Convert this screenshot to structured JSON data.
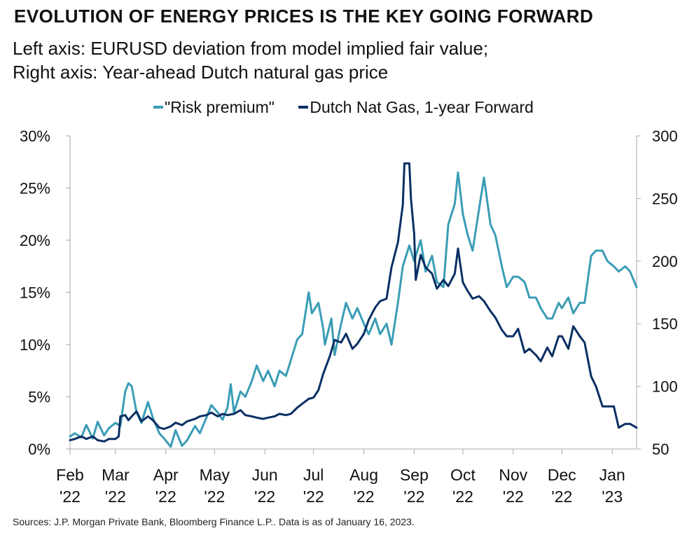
{
  "title": "EVOLUTION OF ENERGY PRICES IS THE KEY GOING FORWARD",
  "subtitle_line1": "Left axis: EURUSD deviation from model implied fair value;",
  "subtitle_line2": "Right axis: Year-ahead Dutch natural gas price",
  "source": "Sources: J.P. Morgan Private Bank, Bloomberg Finance L.P.. Data is as of January 16, 2023.",
  "colors": {
    "risk_premium": "#3a9db5",
    "nat_gas": "#0a2f63",
    "axis": "#aaaaaa"
  },
  "chart_data": {
    "type": "line",
    "legend_position": "top-center",
    "grid": false,
    "x_range": [
      "2022-02-01",
      "2023-01-16"
    ],
    "y_left": {
      "range": [
        0,
        30
      ],
      "ticks": [
        "0%",
        "5%",
        "10%",
        "15%",
        "20%",
        "25%",
        "30%"
      ],
      "tick_values": [
        0,
        5,
        10,
        15,
        20,
        25,
        30
      ]
    },
    "y_right": {
      "range": [
        50,
        300
      ],
      "ticks": [
        "50",
        "100",
        "150",
        "200",
        "250",
        "300"
      ],
      "tick_values": [
        50,
        100,
        150,
        200,
        250,
        300
      ]
    },
    "x_ticks": [
      {
        "date": "2022-02-01",
        "line1": "Feb",
        "line2": "'22"
      },
      {
        "date": "2022-03-01",
        "line1": "Mar",
        "line2": "'22"
      },
      {
        "date": "2022-04-01",
        "line1": "Apr",
        "line2": "'22"
      },
      {
        "date": "2022-05-01",
        "line1": "May",
        "line2": "'22"
      },
      {
        "date": "2022-06-01",
        "line1": "Jun",
        "line2": "'22"
      },
      {
        "date": "2022-07-01",
        "line1": "Jul",
        "line2": "'22"
      },
      {
        "date": "2022-08-01",
        "line1": "Aug",
        "line2": "'22"
      },
      {
        "date": "2022-09-01",
        "line1": "Sep",
        "line2": "'22"
      },
      {
        "date": "2022-10-01",
        "line1": "Oct",
        "line2": "'22"
      },
      {
        "date": "2022-11-01",
        "line1": "Nov",
        "line2": "'22"
      },
      {
        "date": "2022-12-01",
        "line1": "Dec",
        "line2": "'22"
      },
      {
        "date": "2023-01-01",
        "line1": "Jan",
        "line2": "'23"
      }
    ],
    "series": [
      {
        "name": "\"Risk premium\"",
        "axis": "left",
        "color": "#3a9db5",
        "points": [
          [
            "2022-02-01",
            1.2
          ],
          [
            "2022-02-04",
            1.5
          ],
          [
            "2022-02-08",
            1.1
          ],
          [
            "2022-02-11",
            2.3
          ],
          [
            "2022-02-15",
            1.0
          ],
          [
            "2022-02-18",
            2.6
          ],
          [
            "2022-02-22",
            1.3
          ],
          [
            "2022-02-25",
            2.0
          ],
          [
            "2022-03-01",
            2.5
          ],
          [
            "2022-03-04",
            2.2
          ],
          [
            "2022-03-07",
            5.5
          ],
          [
            "2022-03-09",
            6.3
          ],
          [
            "2022-03-11",
            6.0
          ],
          [
            "2022-03-14",
            3.5
          ],
          [
            "2022-03-17",
            2.5
          ],
          [
            "2022-03-21",
            4.5
          ],
          [
            "2022-03-24",
            3.0
          ],
          [
            "2022-03-28",
            1.5
          ],
          [
            "2022-03-31",
            1.0
          ],
          [
            "2022-04-04",
            0.2
          ],
          [
            "2022-04-07",
            1.8
          ],
          [
            "2022-04-11",
            0.3
          ],
          [
            "2022-04-14",
            0.8
          ],
          [
            "2022-04-19",
            2.2
          ],
          [
            "2022-04-22",
            1.5
          ],
          [
            "2022-04-26",
            3.0
          ],
          [
            "2022-04-29",
            4.2
          ],
          [
            "2022-05-03",
            3.5
          ],
          [
            "2022-05-06",
            2.8
          ],
          [
            "2022-05-09",
            4.0
          ],
          [
            "2022-05-11",
            6.2
          ],
          [
            "2022-05-13",
            3.5
          ],
          [
            "2022-05-17",
            5.5
          ],
          [
            "2022-05-20",
            5.0
          ],
          [
            "2022-05-24",
            6.5
          ],
          [
            "2022-05-27",
            8.0
          ],
          [
            "2022-05-31",
            6.5
          ],
          [
            "2022-06-03",
            7.5
          ],
          [
            "2022-06-07",
            6.0
          ],
          [
            "2022-06-10",
            7.5
          ],
          [
            "2022-06-14",
            7.0
          ],
          [
            "2022-06-17",
            8.5
          ],
          [
            "2022-06-21",
            10.5
          ],
          [
            "2022-06-24",
            11.0
          ],
          [
            "2022-06-28",
            15.0
          ],
          [
            "2022-06-30",
            13.0
          ],
          [
            "2022-07-04",
            14.0
          ],
          [
            "2022-07-07",
            11.5
          ],
          [
            "2022-07-08",
            10.0
          ],
          [
            "2022-07-12",
            12.5
          ],
          [
            "2022-07-14",
            9.0
          ],
          [
            "2022-07-18",
            12.0
          ],
          [
            "2022-07-21",
            14.0
          ],
          [
            "2022-07-25",
            12.5
          ],
          [
            "2022-07-28",
            13.5
          ],
          [
            "2022-08-01",
            12.0
          ],
          [
            "2022-08-04",
            11.0
          ],
          [
            "2022-08-08",
            12.5
          ],
          [
            "2022-08-11",
            11.0
          ],
          [
            "2022-08-15",
            12.0
          ],
          [
            "2022-08-18",
            10.0
          ],
          [
            "2022-08-22",
            14.0
          ],
          [
            "2022-08-25",
            17.5
          ],
          [
            "2022-08-29",
            19.5
          ],
          [
            "2022-09-01",
            18.0
          ],
          [
            "2022-09-05",
            20.0
          ],
          [
            "2022-09-08",
            17.0
          ],
          [
            "2022-09-12",
            18.5
          ],
          [
            "2022-09-15",
            16.0
          ],
          [
            "2022-09-19",
            15.5
          ],
          [
            "2022-09-22",
            21.5
          ],
          [
            "2022-09-26",
            23.5
          ],
          [
            "2022-09-28",
            26.5
          ],
          [
            "2022-10-01",
            22.5
          ],
          [
            "2022-10-04",
            20.5
          ],
          [
            "2022-10-07",
            19.0
          ],
          [
            "2022-10-11",
            23.0
          ],
          [
            "2022-10-14",
            26.0
          ],
          [
            "2022-10-18",
            21.5
          ],
          [
            "2022-10-21",
            20.5
          ],
          [
            "2022-10-25",
            17.5
          ],
          [
            "2022-10-28",
            15.5
          ],
          [
            "2022-11-01",
            16.5
          ],
          [
            "2022-11-04",
            16.5
          ],
          [
            "2022-11-08",
            16.0
          ],
          [
            "2022-11-11",
            14.5
          ],
          [
            "2022-11-15",
            14.5
          ],
          [
            "2022-11-18",
            13.5
          ],
          [
            "2022-11-22",
            12.5
          ],
          [
            "2022-11-25",
            12.5
          ],
          [
            "2022-11-29",
            14.0
          ],
          [
            "2022-12-01",
            13.5
          ],
          [
            "2022-12-05",
            14.5
          ],
          [
            "2022-12-08",
            13.0
          ],
          [
            "2022-12-12",
            14.0
          ],
          [
            "2022-12-15",
            14.0
          ],
          [
            "2022-12-19",
            18.5
          ],
          [
            "2022-12-22",
            19.0
          ],
          [
            "2022-12-26",
            19.0
          ],
          [
            "2022-12-29",
            18.0
          ],
          [
            "2023-01-02",
            17.5
          ],
          [
            "2023-01-05",
            17.0
          ],
          [
            "2023-01-09",
            17.5
          ],
          [
            "2023-01-12",
            17.0
          ],
          [
            "2023-01-16",
            15.5
          ]
        ]
      },
      {
        "name": "Dutch Nat Gas, 1-year Forward",
        "axis": "right",
        "color": "#0a2f63",
        "points": [
          [
            "2022-02-01",
            57
          ],
          [
            "2022-02-04",
            58
          ],
          [
            "2022-02-08",
            60
          ],
          [
            "2022-02-11",
            58
          ],
          [
            "2022-02-15",
            60
          ],
          [
            "2022-02-18",
            57
          ],
          [
            "2022-02-22",
            56
          ],
          [
            "2022-02-25",
            58
          ],
          [
            "2022-03-01",
            58
          ],
          [
            "2022-03-03",
            60
          ],
          [
            "2022-03-04",
            76
          ],
          [
            "2022-03-07",
            77
          ],
          [
            "2022-03-09",
            73
          ],
          [
            "2022-03-11",
            76
          ],
          [
            "2022-03-14",
            80
          ],
          [
            "2022-03-17",
            72
          ],
          [
            "2022-03-21",
            76
          ],
          [
            "2022-03-24",
            73
          ],
          [
            "2022-03-28",
            67
          ],
          [
            "2022-03-31",
            66
          ],
          [
            "2022-04-04",
            68
          ],
          [
            "2022-04-07",
            71
          ],
          [
            "2022-04-11",
            69
          ],
          [
            "2022-04-14",
            72
          ],
          [
            "2022-04-19",
            74
          ],
          [
            "2022-04-22",
            76
          ],
          [
            "2022-04-26",
            77
          ],
          [
            "2022-04-29",
            79
          ],
          [
            "2022-05-03",
            76
          ],
          [
            "2022-05-06",
            78
          ],
          [
            "2022-05-09",
            77
          ],
          [
            "2022-05-13",
            78
          ],
          [
            "2022-05-17",
            81
          ],
          [
            "2022-05-20",
            77
          ],
          [
            "2022-05-24",
            76
          ],
          [
            "2022-05-27",
            75
          ],
          [
            "2022-05-31",
            74
          ],
          [
            "2022-06-03",
            75
          ],
          [
            "2022-06-07",
            76
          ],
          [
            "2022-06-10",
            78
          ],
          [
            "2022-06-14",
            77
          ],
          [
            "2022-06-17",
            78
          ],
          [
            "2022-06-21",
            83
          ],
          [
            "2022-06-24",
            86
          ],
          [
            "2022-06-28",
            90
          ],
          [
            "2022-07-01",
            91
          ],
          [
            "2022-07-04",
            97
          ],
          [
            "2022-07-07",
            110
          ],
          [
            "2022-07-11",
            124
          ],
          [
            "2022-07-14",
            137
          ],
          [
            "2022-07-18",
            135
          ],
          [
            "2022-07-21",
            142
          ],
          [
            "2022-07-25",
            130
          ],
          [
            "2022-07-28",
            134
          ],
          [
            "2022-08-01",
            142
          ],
          [
            "2022-08-04",
            153
          ],
          [
            "2022-08-08",
            163
          ],
          [
            "2022-08-11",
            168
          ],
          [
            "2022-08-15",
            170
          ],
          [
            "2022-08-18",
            195
          ],
          [
            "2022-08-22",
            215
          ],
          [
            "2022-08-25",
            245
          ],
          [
            "2022-08-26",
            278
          ],
          [
            "2022-08-29",
            278
          ],
          [
            "2022-08-30",
            250
          ],
          [
            "2022-09-01",
            222
          ],
          [
            "2022-09-02",
            185
          ],
          [
            "2022-09-05",
            205
          ],
          [
            "2022-09-08",
            195
          ],
          [
            "2022-09-12",
            190
          ],
          [
            "2022-09-15",
            178
          ],
          [
            "2022-09-19",
            185
          ],
          [
            "2022-09-22",
            180
          ],
          [
            "2022-09-26",
            190
          ],
          [
            "2022-09-28",
            210
          ],
          [
            "2022-10-01",
            183
          ],
          [
            "2022-10-04",
            176
          ],
          [
            "2022-10-07",
            170
          ],
          [
            "2022-10-11",
            172
          ],
          [
            "2022-10-14",
            168
          ],
          [
            "2022-10-18",
            160
          ],
          [
            "2022-10-21",
            155
          ],
          [
            "2022-10-25",
            145
          ],
          [
            "2022-10-28",
            140
          ],
          [
            "2022-11-01",
            140
          ],
          [
            "2022-11-04",
            146
          ],
          [
            "2022-11-08",
            127
          ],
          [
            "2022-11-11",
            130
          ],
          [
            "2022-11-15",
            125
          ],
          [
            "2022-11-18",
            120
          ],
          [
            "2022-11-22",
            131
          ],
          [
            "2022-11-25",
            124
          ],
          [
            "2022-11-29",
            140
          ],
          [
            "2022-12-01",
            140
          ],
          [
            "2022-12-05",
            130
          ],
          [
            "2022-12-08",
            148
          ],
          [
            "2022-12-12",
            140
          ],
          [
            "2022-12-15",
            135
          ],
          [
            "2022-12-19",
            108
          ],
          [
            "2022-12-22",
            100
          ],
          [
            "2022-12-26",
            84
          ],
          [
            "2022-12-29",
            84
          ],
          [
            "2023-01-02",
            84
          ],
          [
            "2023-01-05",
            67
          ],
          [
            "2023-01-09",
            70
          ],
          [
            "2023-01-12",
            70
          ],
          [
            "2023-01-16",
            67
          ]
        ]
      }
    ]
  }
}
